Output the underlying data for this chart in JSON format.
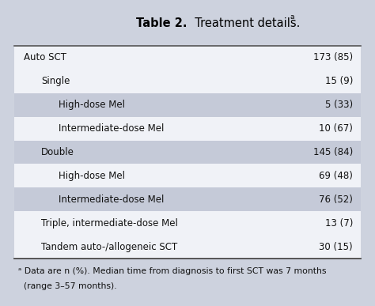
{
  "title_bold": "Table 2.",
  "title_normal": "  Treatment details.",
  "title_super": "a",
  "bg_color": "#cdd2de",
  "table_bg_white": "#f0f2f7",
  "table_bg_shade": "#c5cad8",
  "border_color": "#555555",
  "rows": [
    {
      "label": "Auto SCT",
      "indent": 0,
      "value": "173 (85)",
      "shaded": false
    },
    {
      "label": "Single",
      "indent": 1,
      "value": "15 (9)",
      "shaded": false
    },
    {
      "label": "High-dose Mel",
      "indent": 2,
      "value": "5 (33)",
      "shaded": true
    },
    {
      "label": "Intermediate-dose Mel",
      "indent": 2,
      "value": "10 (67)",
      "shaded": false
    },
    {
      "label": "Double",
      "indent": 1,
      "value": "145 (84)",
      "shaded": true
    },
    {
      "label": "High-dose Mel",
      "indent": 2,
      "value": "69 (48)",
      "shaded": false
    },
    {
      "label": "Intermediate-dose Mel",
      "indent": 2,
      "value": "76 (52)",
      "shaded": true
    },
    {
      "label": "Triple, intermediate-dose Mel",
      "indent": 1,
      "value": "13 (7)",
      "shaded": false
    },
    {
      "label": "Tandem auto-/allogeneic SCT",
      "indent": 1,
      "value": "30 (15)",
      "shaded": false
    }
  ],
  "footer_line1": "ᵃ Data are n (%). Median time from diagnosis to first SCT was 7 months",
  "footer_line2": "  (range 3–57 months).",
  "font_size": 8.5,
  "title_font_size": 10.5,
  "footer_font_size": 7.8
}
